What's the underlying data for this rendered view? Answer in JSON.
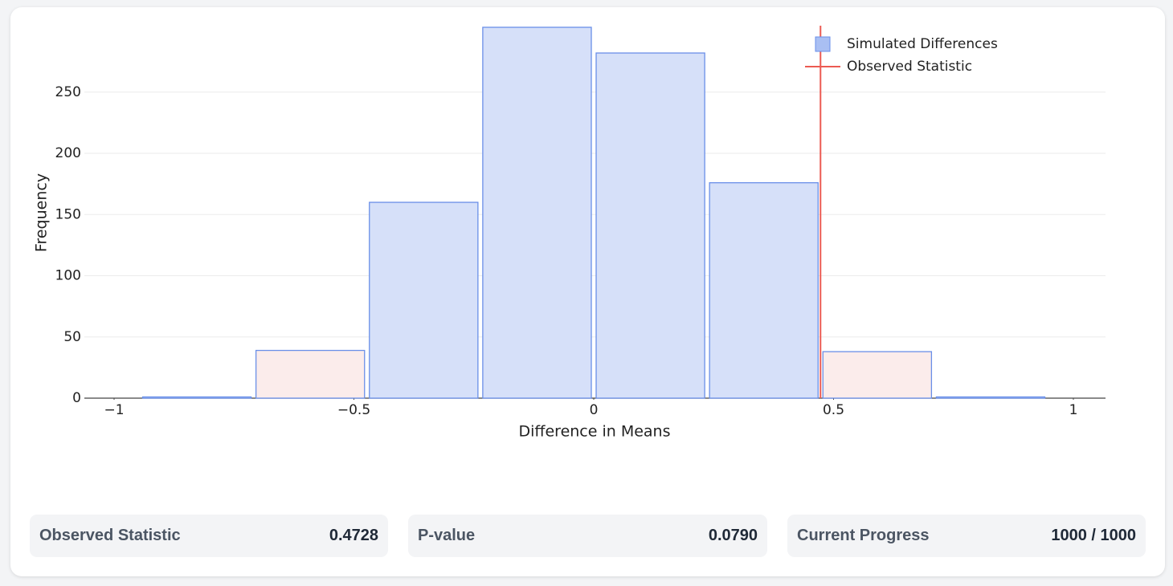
{
  "chart_data": {
    "type": "histogram",
    "x_label": "Difference in Means",
    "y_label": "Frequency",
    "bins": [
      -0.9456,
      -0.7092,
      -0.4728,
      -0.2364,
      0,
      0.2364,
      0.4728,
      0.7092,
      0.9456
    ],
    "series": [
      {
        "name": "Simulated Differences",
        "color": "#d6e0f9",
        "stroke": "#6a8fe8",
        "values": [
          1,
          39,
          160,
          303,
          282,
          176,
          38,
          1
        ],
        "bar_colors": [
          "#d6e0f9",
          "#fbeceb",
          "#d6e0f9",
          "#d6e0f9",
          "#d6e0f9",
          "#d6e0f9",
          "#fbeceb",
          "#d6e0f9"
        ]
      }
    ],
    "observed": {
      "name": "Observed Statistic",
      "value": 0.4728,
      "color": "#ec5a52"
    },
    "xlim": [
      -1.062,
      1.067
    ],
    "ylim": [
      0,
      303
    ],
    "xticks": [
      {
        "value": -1,
        "label": "−1"
      },
      {
        "value": -0.5,
        "label": "−0.5"
      },
      0,
      0.5,
      1
    ],
    "yticks": [
      0,
      50,
      100,
      150,
      200,
      250
    ],
    "grid": true,
    "legend": "top-right"
  },
  "stats": [
    {
      "label": "Observed Statistic",
      "value": "0.4728"
    },
    {
      "label": "P-value",
      "value": "0.0790"
    },
    {
      "label": "Current Progress",
      "value": "1000 / 1000"
    }
  ]
}
